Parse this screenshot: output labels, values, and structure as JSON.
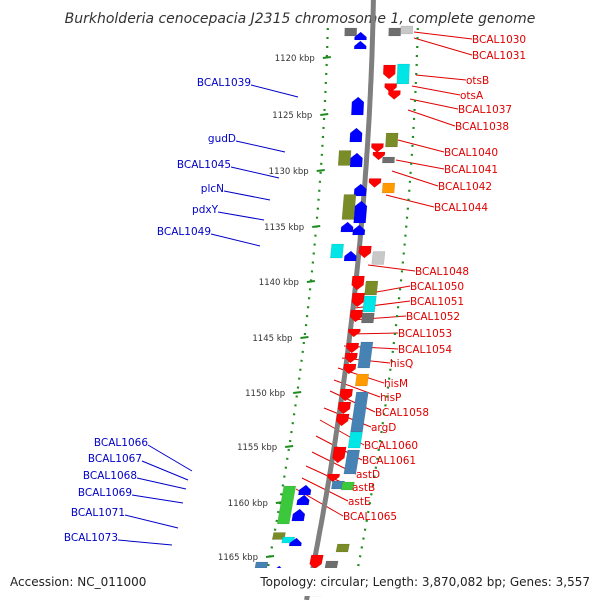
{
  "title": "Burkholderia cenocepacia J2315 chromosome 1, complete genome",
  "footer": {
    "accession": "Accession: NC_011000",
    "topology": "Topology: circular; Length: 3,870,082 bp; Genes: 3,557"
  },
  "colors": {
    "axis": "#7f7f7f",
    "forward_label": "#0000c8",
    "reverse_label": "#e00000",
    "ruler": "#1e8c1e",
    "gene_forward": "#0000ff",
    "gene_reverse": "#ff0000"
  },
  "ticks": [
    "1120 kbp",
    "1125 kbp",
    "1130 kbp",
    "1135 kbp",
    "1140 kbp",
    "1145 kbp",
    "1150 kbp",
    "1155 kbp",
    "1160 kbp",
    "1165 kbp"
  ],
  "left_labels": [
    "BCAL1039",
    "gudD",
    "BCAL1045",
    "plcN",
    "pdxY",
    "BCAL1049",
    "BCAL1066",
    "BCAL1067",
    "BCAL1068",
    "BCAL1069",
    "BCAL1071",
    "BCAL1073"
  ],
  "right_labels": [
    "BCAL1030",
    "BCAL1031",
    "otsB",
    "otsA",
    "BCAL1037",
    "BCAL1038",
    "BCAL1040",
    "BCAL1041",
    "BCAL1042",
    "BCAL1044",
    "BCAL1048",
    "BCAL1050",
    "BCAL1051",
    "BCAL1052",
    "BCAL1053",
    "BCAL1054",
    "hisQ",
    "hisM",
    "hisP",
    "BCAL1058",
    "argD",
    "BCAL1060",
    "BCAL1061",
    "astD",
    "astB",
    "astE",
    "BCAL1065"
  ]
}
